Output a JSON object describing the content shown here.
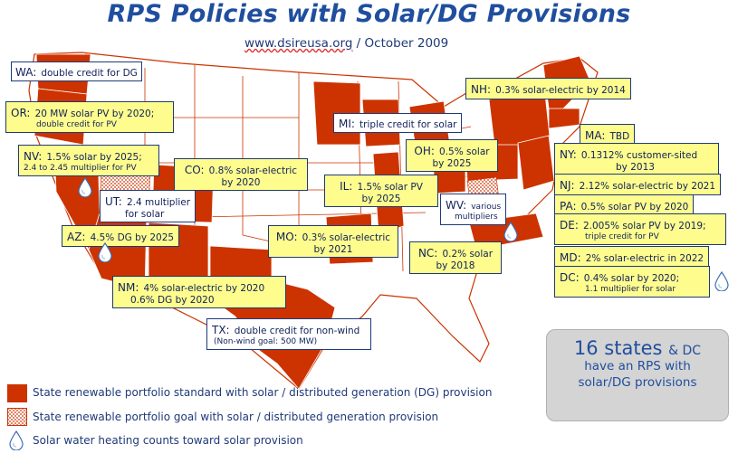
{
  "title": "RPS Policies with Solar/DG Provisions",
  "source_url": "www.dsireusa.org",
  "source_date": "October 2009",
  "colors": {
    "solar_rps_state": "#cc3300",
    "solar_goal_state": "#f3c2a8",
    "label_yellow": "#fdfc8d",
    "title_blue": "#1f4e9e",
    "callout_bg": "#d4d4d4"
  },
  "labels": {
    "wa": {
      "state": "WA:",
      "text": "double credit for DG"
    },
    "or": {
      "state": "OR:",
      "text": "20 MW solar PV by 2020;",
      "sub": "double credit for PV"
    },
    "nv": {
      "state": "NV:",
      "text": "1.5% solar by 2025;",
      "sub": "2.4 to 2.45 multiplier for PV"
    },
    "ut": {
      "state": "UT:",
      "text": "2.4 multiplier",
      "text2": "for solar"
    },
    "az": {
      "state": "AZ:",
      "text": "4.5% DG by 2025"
    },
    "co": {
      "state": "CO:",
      "text": "0.8% solar-electric",
      "text2": "by 2020"
    },
    "nm": {
      "state": "NM:",
      "text": "4% solar-electric by 2020",
      "text2": "0.6% DG by 2020"
    },
    "tx": {
      "state": "TX:",
      "text": "double credit for non-wind",
      "sub": "(Non-wind goal: 500 MW)"
    },
    "mo": {
      "state": "MO:",
      "text": "0.3% solar-electric",
      "text2": "by 2021"
    },
    "il": {
      "state": "IL:",
      "text": "1.5% solar PV",
      "text2": "by 2025"
    },
    "mi": {
      "state": "MI:",
      "text": "triple credit for solar"
    },
    "oh": {
      "state": "OH:",
      "text": "0.5% solar",
      "text2": "by 2025"
    },
    "wv": {
      "state": "WV:",
      "text": "various",
      "text2": "multipliers"
    },
    "nc": {
      "state": "NC:",
      "text": "0.2% solar",
      "text2": "by 2018"
    },
    "nh": {
      "state": "NH:",
      "text": "0.3% solar-electric by 2014"
    },
    "ma": {
      "state": "MA:",
      "text": "TBD"
    },
    "ny": {
      "state": "NY:",
      "text": "0.1312% customer-sited",
      "text2": "by 2013"
    },
    "nj": {
      "state": "NJ:",
      "text": "2.12% solar-electric by 2021"
    },
    "pa": {
      "state": "PA:",
      "text": "0.5% solar PV by 2020"
    },
    "de": {
      "state": "DE:",
      "text": "2.005% solar PV by 2019;",
      "sub": "triple credit for PV"
    },
    "md": {
      "state": "MD:",
      "text": "2% solar-electric in 2022"
    },
    "dc": {
      "state": "DC:",
      "text": "0.4% solar by 2020;",
      "sub": "1.1 multiplier for solar"
    }
  },
  "callout": {
    "count": "16 states",
    "amp": "& DC",
    "line2": "have an RPS with",
    "line3": "solar/DG provisions"
  },
  "legend": {
    "standard": "State renewable portfolio standard with solar / distributed generation (DG) provision",
    "goal": "State renewable portfolio goal with solar / distributed generation provision",
    "water": "Solar water heating counts toward solar provision"
  }
}
